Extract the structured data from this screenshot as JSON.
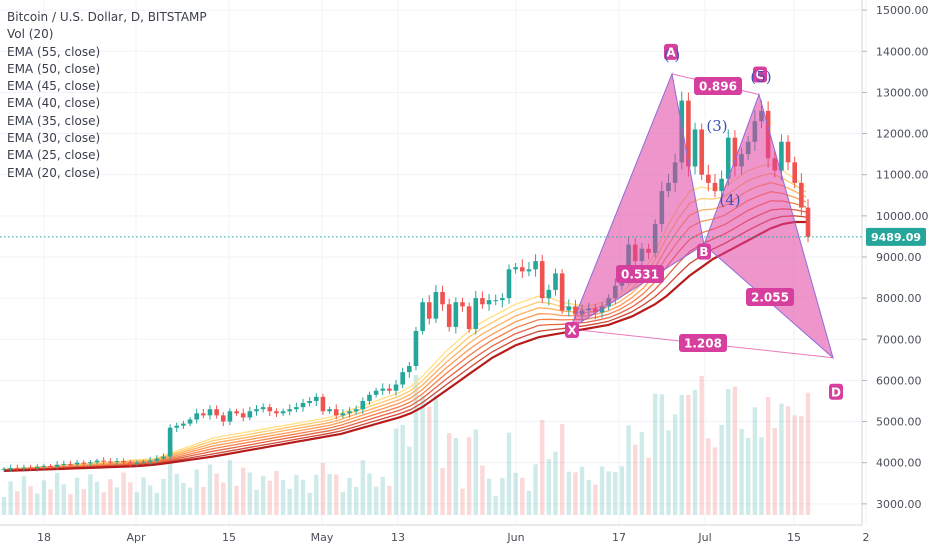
{
  "chart_data": {
    "type": "candlestick",
    "title": "Bitcoin / U.S. Dollar, D, BITSTAMP",
    "indicators": [
      "Vol (20)",
      "EMA (55, close)",
      "EMA (50, close)",
      "EMA (45, close)",
      "EMA (40, close)",
      "EMA (35, close)",
      "EMA (30, close)",
      "EMA (25, close)",
      "EMA (20, close)"
    ],
    "y_axis": {
      "side": "right",
      "ticks": [
        "15000.00",
        "14000.00",
        "13000.00",
        "12000.00",
        "11000.00",
        "10000.00",
        "9000.00",
        "8000.00",
        "7000.00",
        "6000.00",
        "5000.00",
        "4000.00",
        "3000.00"
      ],
      "range": [
        2850,
        15100
      ]
    },
    "x_axis": {
      "ticks": [
        "18",
        "Apr",
        "15",
        "May",
        "13",
        "Jun",
        "17",
        "Jul",
        "15",
        "2"
      ]
    },
    "last_price": "9489.09",
    "closes": [
      3850,
      3870,
      3860,
      3880,
      3870,
      3900,
      3920,
      3900,
      3950,
      3970,
      3960,
      4000,
      3990,
      4010,
      4050,
      4030,
      4020,
      4040,
      4010,
      3990,
      4000,
      4020,
      4050,
      4100,
      4150,
      4850,
      4900,
      4950,
      5050,
      5200,
      5150,
      5300,
      5150,
      5000,
      5250,
      5200,
      5100,
      5250,
      5300,
      5350,
      5250,
      5200,
      5250,
      5300,
      5350,
      5450,
      5500,
      5600,
      5250,
      5300,
      5150,
      5200,
      5250,
      5300,
      5500,
      5650,
      5750,
      5800,
      5750,
      5900,
      6200,
      6350,
      7200,
      7900,
      7500,
      8150,
      7850,
      7300,
      7900,
      7800,
      7250,
      8000,
      7850,
      7950,
      7950,
      8000,
      8700,
      8750,
      8650,
      8700,
      8900,
      8000,
      8200,
      8600,
      7700,
      7800,
      7600,
      7700,
      7750,
      7650,
      7800,
      8000,
      8300,
      8500,
      9300,
      8900,
      9200,
      9100,
      9800,
      10600,
      10800,
      11300,
      12800,
      11200,
      12100,
      11000,
      10800,
      10600,
      10900,
      11900,
      11200,
      11500,
      11800,
      12300,
      12550,
      11400,
      11100,
      11800,
      11300,
      10800,
      10200,
      9489
    ],
    "ema_fast_20": [
      3850,
      3860,
      3880,
      3900,
      3910,
      3940,
      3960,
      3980,
      4000,
      4020,
      4030,
      4060,
      4080,
      4100,
      4200,
      4300,
      4400,
      4500,
      4600,
      4650,
      4700,
      4750,
      4800,
      4850,
      4900,
      4950,
      5000,
      5050,
      5100,
      5200,
      5300,
      5400,
      5500,
      5600,
      5700,
      5850,
      6100,
      6400,
      6700,
      6950,
      7200,
      7400,
      7550,
      7700,
      7850,
      7950,
      8050,
      8000,
      7900,
      7850,
      7800,
      7850,
      7950,
      8100,
      8350,
      8650,
      9100,
      9700,
      10200,
      10600,
      10700,
      10650,
      10700,
      10900,
      11100,
      11200,
      11250,
      11100,
      10900,
      10700
    ],
    "ema_slow_55": [
      3800,
      3810,
      3820,
      3830,
      3840,
      3850,
      3860,
      3870,
      3880,
      3890,
      3900,
      3910,
      3930,
      3950,
      3990,
      4030,
      4070,
      4110,
      4150,
      4200,
      4250,
      4300,
      4350,
      4400,
      4450,
      4500,
      4550,
      4600,
      4650,
      4700,
      4780,
      4860,
      4940,
      5020,
      5100,
      5200,
      5350,
      5550,
      5750,
      5950,
      6150,
      6350,
      6550,
      6700,
      6850,
      6950,
      7050,
      7100,
      7150,
      7200,
      7250,
      7300,
      7350,
      7450,
      7550,
      7700,
      7850,
      8050,
      8300,
      8550,
      8750,
      8950,
      9100,
      9250,
      9400,
      9550,
      9700,
      9800,
      9850,
      9850
    ]
  },
  "harmonic": {
    "points": {
      "X": "X",
      "A": "A",
      "B": "B",
      "C": "C",
      "D": "D"
    },
    "elliott": {
      "w3": "(3)",
      "w4": "(4)",
      "w5": "(5)"
    },
    "ratios": {
      "xb": "0.531",
      "ac": "0.896",
      "bd": "2.055",
      "xd": "1.208"
    }
  },
  "colors": {
    "up": "#26a69a",
    "down": "#ef5350",
    "harmonic_fill": "#e040a0",
    "harmonic_line": "#8e6bd8",
    "label_bg": "#d63f9e",
    "price_tag": "#26a69a",
    "ema_fast": "#ffd54f",
    "ema_slow": "#b71c1c"
  }
}
